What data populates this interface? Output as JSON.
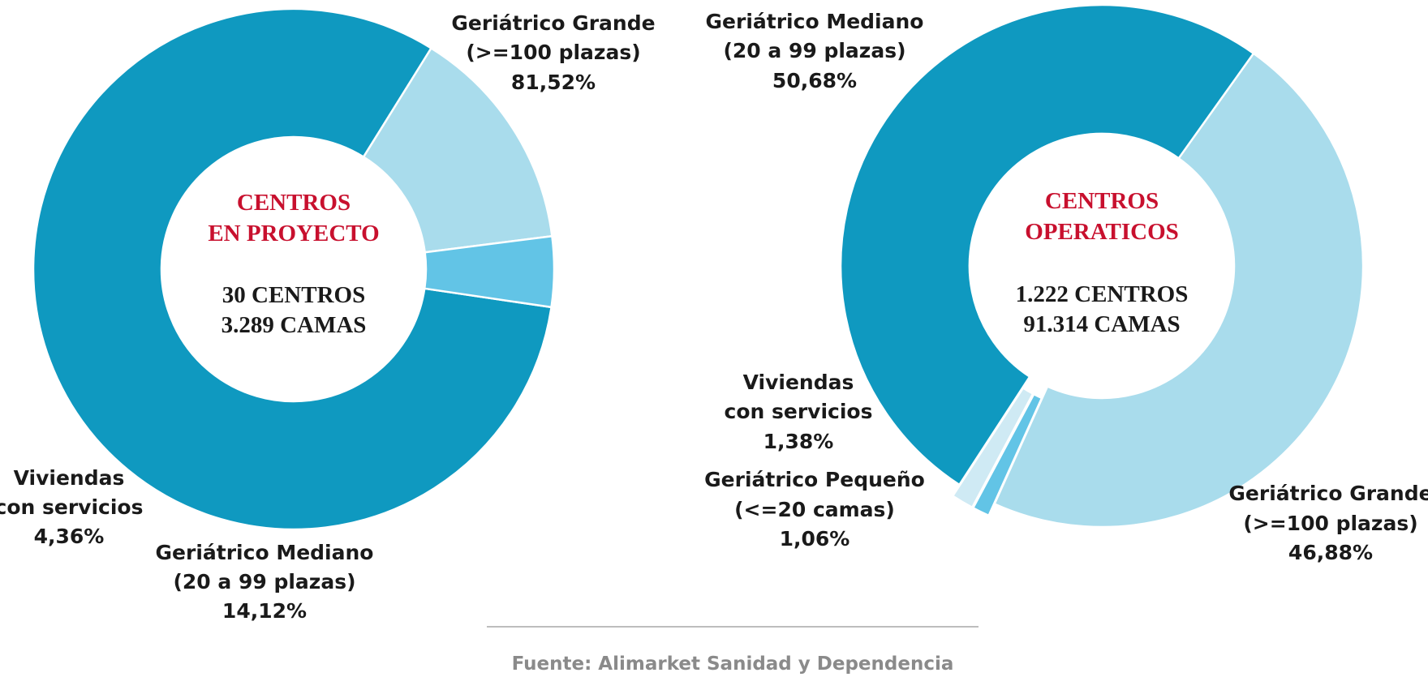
{
  "colors": {
    "dark_blue": "#0f99c0",
    "light_blue": "#a9dcec",
    "mid_blue": "#62c4e6",
    "pale_blue": "#cfeaf4",
    "title_red": "#c8102e",
    "source_gray": "#8a8a8a",
    "rule_gray": "#bdbdbd"
  },
  "chart_data": [
    {
      "type": "pie",
      "variant": "donut",
      "center": {
        "title_lines": [
          "CENTROS",
          "EN PROYECTO"
        ],
        "stat_lines": [
          "30 CENTROS",
          "3.289 CAMAS"
        ]
      },
      "slices": [
        {
          "name": "Geriátrico Grande (>=100 plazas)",
          "label_lines": [
            "Geriátrico Grande",
            "(>=100 plazas)"
          ],
          "value": 81.52,
          "value_label": "81,52%",
          "color": "#0f99c0"
        },
        {
          "name": "Geriátrico Mediano (20 a 99 plazas)",
          "label_lines": [
            "Geriátrico Mediano",
            "(20 a 99 plazas)"
          ],
          "value": 14.12,
          "value_label": "14,12%",
          "color": "#a9dcec"
        },
        {
          "name": "Viviendas con servicios",
          "label_lines": [
            "Viviendas",
            "con servicios"
          ],
          "value": 4.36,
          "value_label": "4,36%",
          "color": "#62c4e6"
        }
      ]
    },
    {
      "type": "pie",
      "variant": "donut",
      "center": {
        "title_lines": [
          "CENTROS",
          "OPERATICOS"
        ],
        "stat_lines": [
          "1.222 CENTROS",
          "91.314 CAMAS"
        ]
      },
      "slices": [
        {
          "name": "Geriátrico Grande (>=100 plazas)",
          "label_lines": [
            "Geriátrico Grande",
            "(>=100 plazas)"
          ],
          "value": 46.88,
          "value_label": "46,88%",
          "color": "#a9dcec"
        },
        {
          "name": "Geriátrico Pequeño (<=20 camas)",
          "label_lines": [
            "Geriátrico Pequeño",
            "(<=20 camas)"
          ],
          "value": 1.06,
          "value_label": "1,06%",
          "color": "#62c4e6",
          "exploded": true
        },
        {
          "name": "Viviendas con servicios",
          "label_lines": [
            "Viviendas",
            "con servicios"
          ],
          "value": 1.38,
          "value_label": "1,38%",
          "color": "#cfeaf4",
          "exploded": true
        },
        {
          "name": "Geriátrico Mediano (20 a 99 plazas)",
          "label_lines": [
            "Geriátrico Mediano",
            "(20 a 99 plazas)"
          ],
          "value": 50.68,
          "value_label": "50,68%",
          "color": "#0f99c0"
        }
      ]
    }
  ],
  "source": "Fuente: Alimarket Sanidad y Dependencia"
}
